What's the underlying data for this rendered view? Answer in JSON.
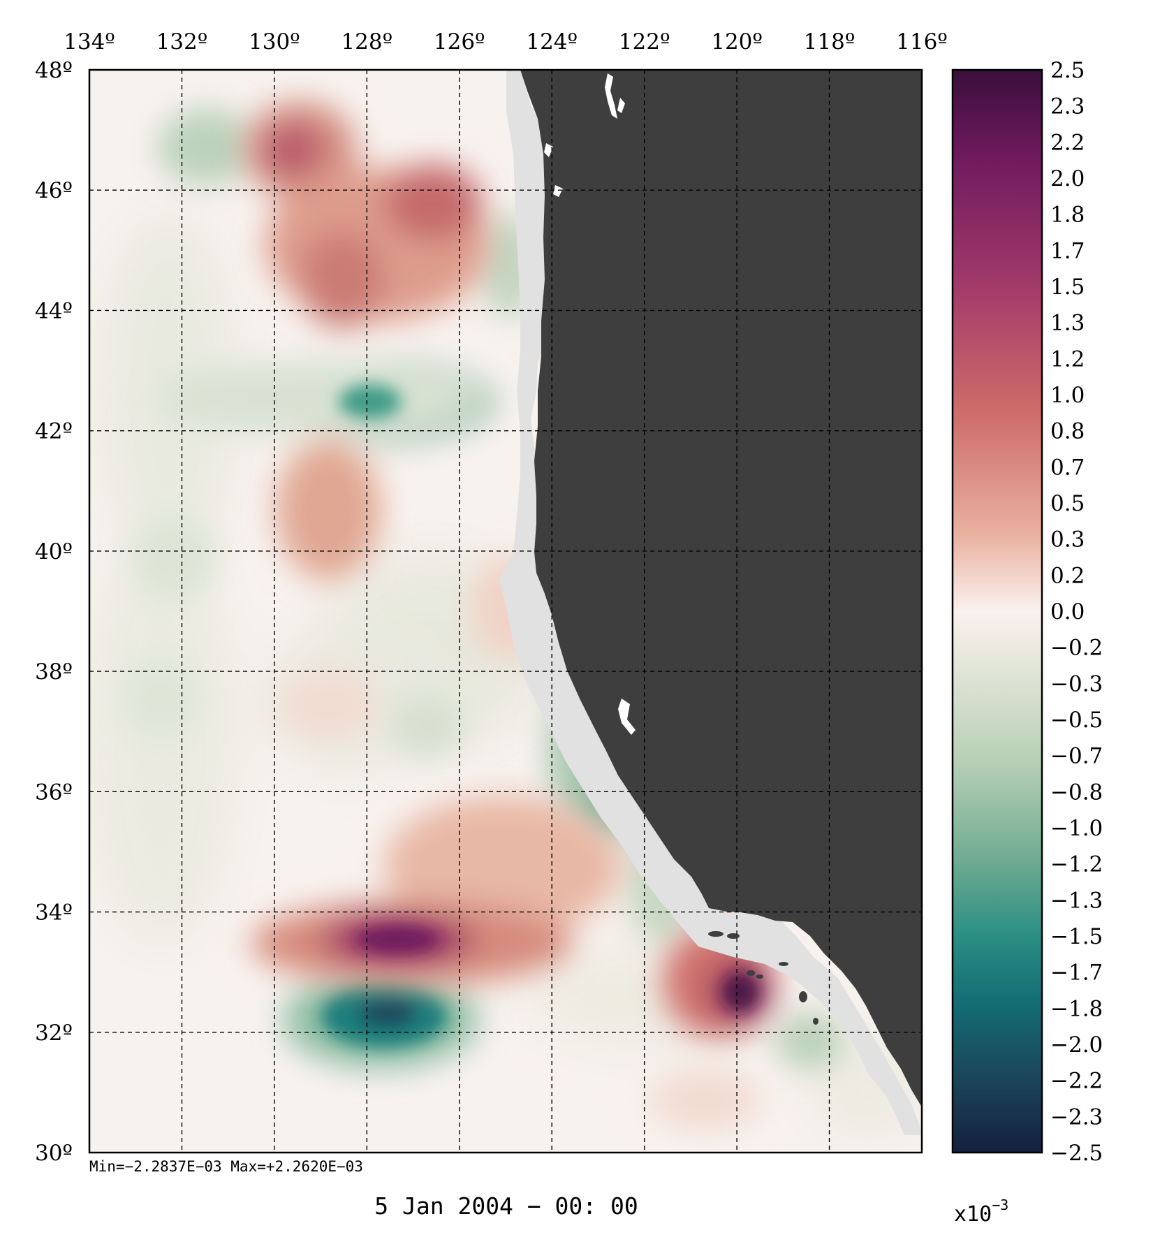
{
  "map": {
    "lon_labels": [
      "134º",
      "132º",
      "130º",
      "128º",
      "126º",
      "124º",
      "122º",
      "120º",
      "118º",
      "116º"
    ],
    "lat_labels": [
      "48º",
      "46º",
      "44º",
      "42º",
      "40º",
      "38º",
      "36º",
      "34º",
      "32º",
      "30º"
    ],
    "minmax": "Min=−2.2837E−03   Max=+2.2620E−03",
    "time_caption": "5 Jan 2004 − 00: 00",
    "land_color": "#3e3e3e",
    "coastal_mask_color": "#e1e1e1",
    "features": [
      {
        "label": "gyre",
        "lon": 127.2,
        "lat": 32.5,
        "sign": "negative"
      },
      {
        "label": "gyre",
        "lon": 119.8,
        "lat": 33.0,
        "sign": "positive"
      }
    ]
  },
  "colorbar": {
    "tick_labels": [
      "2.5",
      "2.3",
      "2.2",
      "2.0",
      "1.8",
      "1.7",
      "1.5",
      "1.3",
      "1.2",
      "1.0",
      "0.8",
      "0.7",
      "0.5",
      "0.3",
      "0.2",
      "0.0",
      "−0.2",
      "−0.3",
      "−0.5",
      "−0.7",
      "−0.8",
      "−1.0",
      "−1.2",
      "−1.3",
      "−1.5",
      "−1.7",
      "−1.8",
      "−2.0",
      "−2.2",
      "−2.3",
      "−2.5"
    ],
    "multiplier_base": "x10",
    "multiplier_exp": "−3",
    "range": [
      -2.5,
      2.5
    ],
    "colormap": "curl",
    "stops": [
      "#3a0f3a",
      "#6e1a5e",
      "#a33a6a",
      "#cf6e6a",
      "#e9b2a0",
      "#fbf1ee",
      "#e3e6d9",
      "#b7cfb5",
      "#6fac92",
      "#2a8e84",
      "#136e74",
      "#1b4658",
      "#15203e"
    ]
  }
}
